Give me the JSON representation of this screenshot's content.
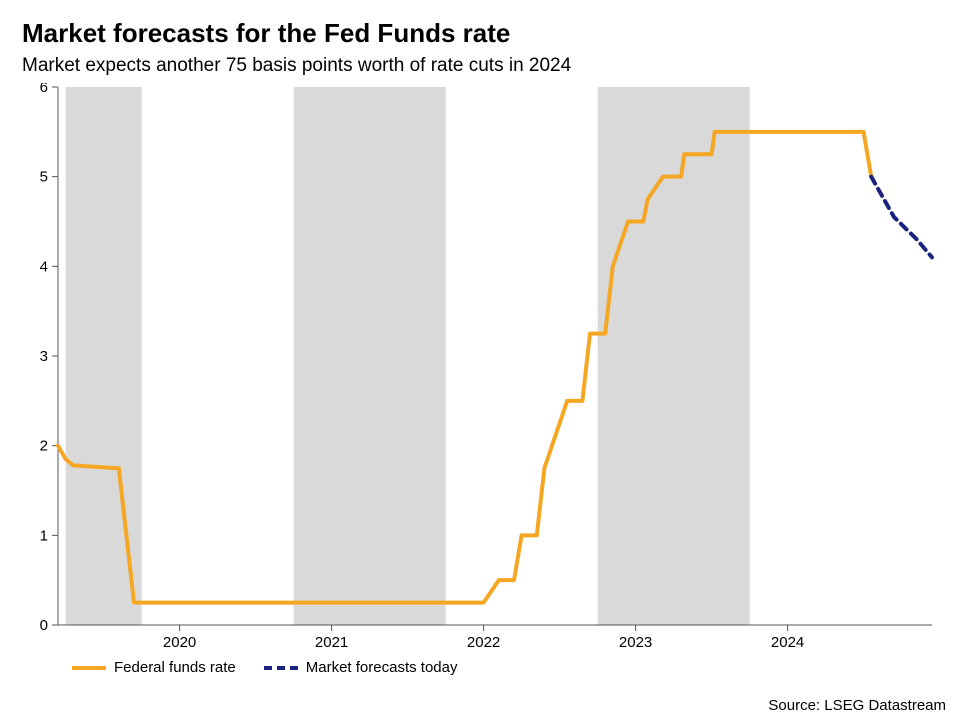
{
  "title": "Market forecasts for the Fed Funds rate",
  "subtitle": "Market expects another 75 basis points worth of rate cuts in 2024",
  "source": "Source: LSEG Datastream",
  "chart": {
    "type": "line",
    "background_color": "#ffffff",
    "axis_color": "#555555",
    "tick_fontsize": 15,
    "title_fontsize": 26,
    "subtitle_fontsize": 19,
    "xlim": [
      2019.2,
      2024.95
    ],
    "ylim": [
      0,
      6
    ],
    "ytick_step": 1,
    "ytick_labels": [
      "0",
      "1",
      "2",
      "3",
      "4",
      "5",
      "6"
    ],
    "xtick_positions": [
      2020,
      2021,
      2022,
      2023,
      2024
    ],
    "xtick_labels": [
      "2020",
      "2021",
      "2022",
      "2023",
      "2024"
    ],
    "shaded_bands": {
      "color": "#d9d9d9",
      "ranges": [
        [
          2019.25,
          2019.75
        ],
        [
          2020.75,
          2021.75
        ],
        [
          2022.75,
          2023.75
        ]
      ]
    },
    "series": {
      "fed_funds": {
        "label": "Federal funds rate",
        "color": "#f5a623",
        "width": 4,
        "dash": "none",
        "points": [
          [
            2019.2,
            2.0
          ],
          [
            2019.25,
            1.85
          ],
          [
            2019.3,
            1.78
          ],
          [
            2019.58,
            1.75
          ],
          [
            2019.6,
            1.75
          ],
          [
            2019.7,
            0.25
          ],
          [
            2021.95,
            0.25
          ],
          [
            2022.0,
            0.25
          ],
          [
            2022.1,
            0.5
          ],
          [
            2022.2,
            0.5
          ],
          [
            2022.25,
            1.0
          ],
          [
            2022.35,
            1.0
          ],
          [
            2022.4,
            1.75
          ],
          [
            2022.55,
            2.5
          ],
          [
            2022.65,
            2.5
          ],
          [
            2022.7,
            3.25
          ],
          [
            2022.8,
            3.25
          ],
          [
            2022.85,
            4.0
          ],
          [
            2022.95,
            4.5
          ],
          [
            2023.05,
            4.5
          ],
          [
            2023.08,
            4.75
          ],
          [
            2023.18,
            5.0
          ],
          [
            2023.3,
            5.0
          ],
          [
            2023.32,
            5.25
          ],
          [
            2023.5,
            5.25
          ],
          [
            2023.52,
            5.5
          ],
          [
            2024.4,
            5.5
          ],
          [
            2024.5,
            5.5
          ],
          [
            2024.55,
            5.0
          ]
        ]
      },
      "forecast": {
        "label": "Market forecasts today",
        "color": "#1a237e",
        "width": 4,
        "dash": "8,6",
        "points": [
          [
            2024.55,
            5.0
          ],
          [
            2024.7,
            4.55
          ],
          [
            2024.85,
            4.3
          ],
          [
            2024.95,
            4.1
          ]
        ]
      }
    }
  },
  "legend": {
    "items": [
      {
        "key": "fed_funds",
        "label": "Federal funds rate"
      },
      {
        "key": "forecast",
        "label": "Market forecasts today"
      }
    ]
  }
}
